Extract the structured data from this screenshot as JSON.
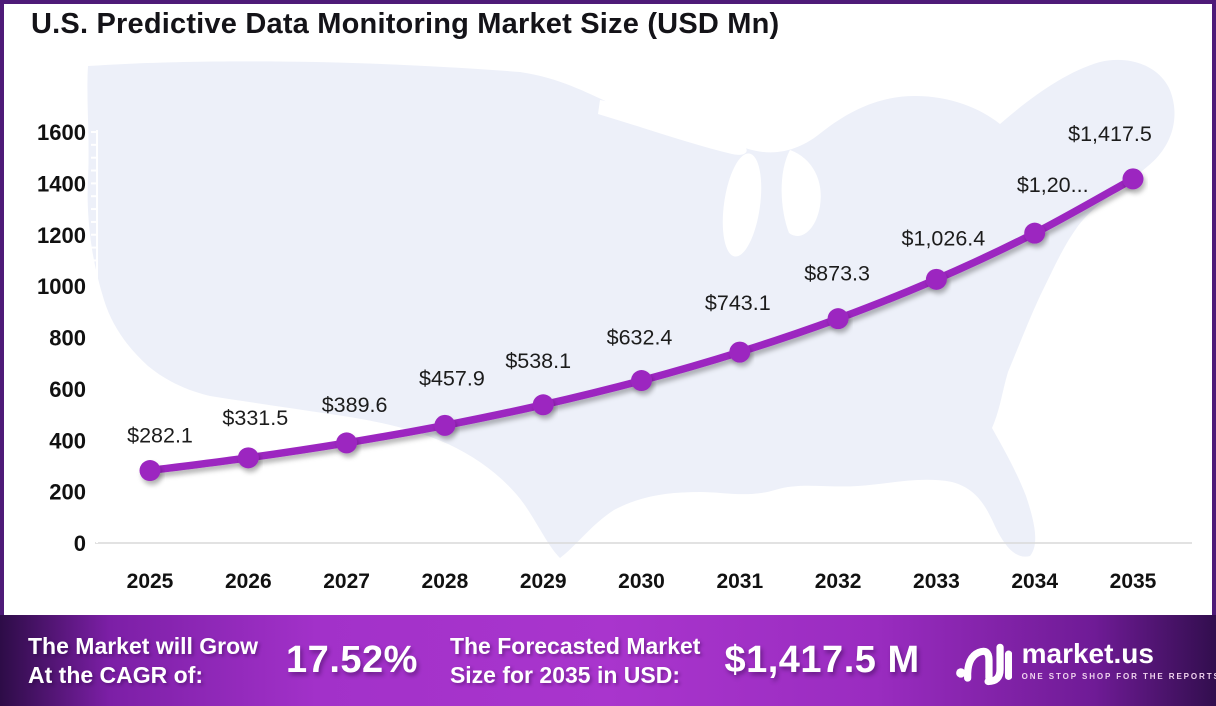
{
  "page": {
    "title": "U.S. Predictive Data Monitoring Market Size (USD Mn)"
  },
  "chart_data": {
    "type": "line",
    "title": "U.S. Predictive Data Monitoring Market Size (USD Mn)",
    "x": [
      2025,
      2026,
      2027,
      2028,
      2029,
      2030,
      2031,
      2032,
      2033,
      2034,
      2035
    ],
    "series": [
      {
        "name": "U.S. Predictive Data Monitoring Market Size (USD Mn)",
        "values": [
          282.1,
          331.5,
          389.6,
          457.9,
          538.1,
          632.4,
          743.1,
          873.3,
          1026.4,
          1206.2,
          1417.5
        ]
      }
    ],
    "point_labels": [
      "$282.1",
      "$331.5",
      "$389.6",
      "$457.9",
      "$538.1",
      "$632.4",
      "$743.1",
      "$873.3",
      "$1,026.4",
      "$1,20...",
      "$1,417.5"
    ],
    "xlabel": "",
    "ylabel": "",
    "ylim": [
      0,
      1600
    ],
    "ytick_step": 200,
    "grid": false,
    "legend": false,
    "background": "us-map-silhouette"
  },
  "colors": {
    "line": "#9C27C0",
    "map_fill": "#EDF0F9",
    "border": "#4E1A78",
    "banner_center": "#A935CD",
    "banner_edge": "#2D0C47",
    "axis_line": "#D9D9D9",
    "label_text": "#1C1C1C"
  },
  "banner": {
    "cagr_label_line1": "The Market will Grow",
    "cagr_label_line2": "At the CAGR of:",
    "cagr_value": "17.52%",
    "forecast_label_line1": "The Forecasted Market",
    "forecast_label_line2": "Size for 2035 in USD:",
    "forecast_value": "$1,417.5 M",
    "logo_text": "market.us",
    "logo_tagline": "ONE STOP SHOP FOR THE REPORTS"
  }
}
